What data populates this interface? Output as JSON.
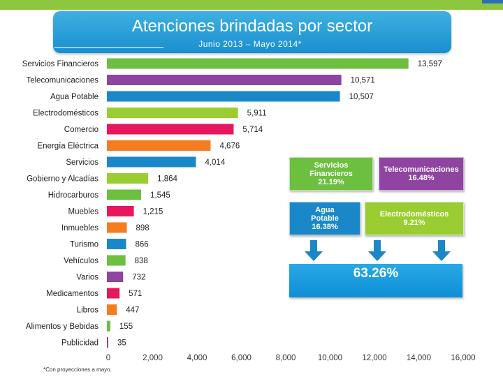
{
  "header": {
    "title": "Atenciones brindadas por sector",
    "subtitle": "Junio 2013 – Mayo 2014*"
  },
  "footnote": "*Con proyecciones a mayo.",
  "chart_data": {
    "type": "bar",
    "orientation": "horizontal",
    "title": "Atenciones brindadas por sector",
    "subtitle": "Junio 2013 – Mayo 2014*",
    "xlim": [
      0,
      16000
    ],
    "xticks": [
      "0",
      "2,000",
      "4,000",
      "6,000",
      "8,000",
      "10,000",
      "12,000",
      "14,000",
      "16,000"
    ],
    "categories": [
      "Servicios Financieros",
      "Telecomunicaciones",
      "Agua Potable",
      "Electrodomésticos",
      "Comercio",
      "Energía Eléctrica",
      "Servicios",
      "Gobierno y Alcadías",
      "Hidrocarburos",
      "Muebles",
      "Inmuebles",
      "Turismo",
      "Vehículos",
      "Varios",
      "Medicamentos",
      "Libros",
      "Alimentos y Bebidas",
      "Publicidad"
    ],
    "values": [
      13597,
      10571,
      10507,
      5911,
      5714,
      4676,
      4014,
      1864,
      1545,
      1215,
      898,
      866,
      838,
      732,
      571,
      447,
      155,
      35
    ],
    "value_labels": [
      "13,597",
      "10,571",
      "10,507",
      "5,911",
      "5,714",
      "4,676",
      "4,014",
      "1,864",
      "1,545",
      "1,215",
      "898",
      "866",
      "838",
      "732",
      "571",
      "447",
      "155",
      "35"
    ],
    "colors": [
      "#6cbf3f",
      "#8e44a0",
      "#1a88c8",
      "#9acd32",
      "#e8175d",
      "#f57c20",
      "#1a88c8",
      "#9acd32",
      "#6cbf3f",
      "#e8175d",
      "#f57c20",
      "#1a88c8",
      "#6cbf3f",
      "#8e44a0",
      "#e8175d",
      "#f57c20",
      "#6cbf3f",
      "#8e44a0"
    ],
    "grid": false
  },
  "summary": {
    "boxes": [
      {
        "name": "Servicios Financieros",
        "line1": "Servicios",
        "line2": "Financieros",
        "pct": "21.19%",
        "color": "#6cbf3f"
      },
      {
        "name": "Telecomunicaciones",
        "line1": "Telecomunicaciones",
        "line2": "",
        "pct": "16.48%",
        "color": "#8e44a0"
      },
      {
        "name": "Agua Potable",
        "line1": "Agua",
        "line2": "Potable",
        "pct": "16.38%",
        "color": "#1a88c8"
      },
      {
        "name": "Electrodomésticos",
        "line1": "Electrodomésticos",
        "line2": "",
        "pct": "9.21%",
        "color": "#9acd32"
      }
    ],
    "total": "63.26%",
    "arrow_color": "#1a88c8"
  }
}
